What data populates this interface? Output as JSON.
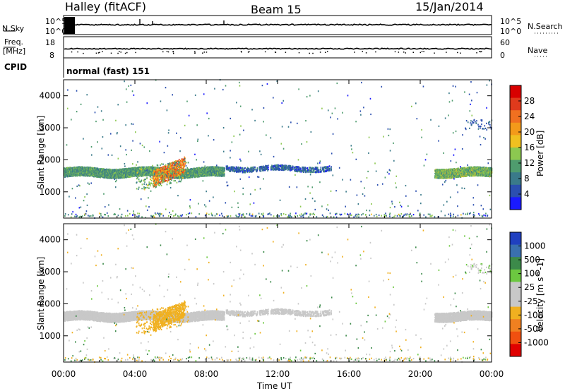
{
  "header": {
    "title": "Halley (fitACF)",
    "beam": "Beam 15",
    "date": "15/Jan/2014"
  },
  "strip_labels": {
    "nsky": "N.Sky",
    "nsky_top": "10^5",
    "nsky_bottom": "10^0",
    "nsearch": "N.Search",
    "nsearch_top": "10^5",
    "nsearch_bottom": "10^0",
    "freq": "Freq.",
    "freq_unit": "[MHz]",
    "freq_top": "18",
    "freq_bottom": "8",
    "nave": "Nave",
    "nave_top": "60",
    "nave_bottom": "0",
    "cpid": "CPID",
    "cpid_value": "normal (fast) 151"
  },
  "colors": {
    "power_scale": [
      "#1a1aff",
      "#2b4fb0",
      "#3a7a8a",
      "#4f9c6e",
      "#8cc850",
      "#f0c020",
      "#f39a1a",
      "#f07020",
      "#e03a1c",
      "#d80000"
    ],
    "velocity_scale": [
      "#2040c0",
      "#3a70b0",
      "#3c8a4a",
      "#6cc840",
      "#c8c8c8",
      "#c8c8c8",
      "#f0b020",
      "#f08020",
      "#f05010",
      "#e00000"
    ],
    "ground_scatter": "#c8c8c8"
  },
  "chart_data": [
    {
      "type": "heatmap",
      "panel": "power",
      "xlabel": "Time UT",
      "ylabel": "Slant Range [km]",
      "x_ticks": [
        "00:00",
        "04:00",
        "08:00",
        "12:00",
        "16:00",
        "20:00",
        "00:00"
      ],
      "x_range_hours": [
        0,
        24
      ],
      "y_ticks": [
        1000,
        2000,
        3000,
        4000
      ],
      "ylim": [
        180,
        4500
      ],
      "colorbar_label": "Power [dB]",
      "colorbar_ticks": [
        4,
        8,
        12,
        16,
        20,
        24,
        28
      ],
      "colorbar_range": [
        0,
        30
      ],
      "features": [
        {
          "name": "main band",
          "t_start": 0.0,
          "t_end": 9.0,
          "range_km": 1600,
          "power_db": 10
        },
        {
          "name": "main band",
          "t_start": 9.0,
          "t_end": 15.0,
          "range_km": 1720,
          "power_db": 6
        },
        {
          "name": "main band",
          "t_start": 20.8,
          "t_end": 24.0,
          "range_km": 1600,
          "power_db": 12
        },
        {
          "name": "intense patch",
          "t_start": 5.0,
          "t_end": 6.8,
          "range_km": 1400,
          "power_db": 22
        },
        {
          "name": "sporadic high range",
          "t_start": 22.5,
          "t_end": 24.0,
          "range_km": 3100,
          "power_db": 6
        }
      ]
    },
    {
      "type": "heatmap",
      "panel": "velocity",
      "xlabel": "Time UT",
      "ylabel": "Slant Range [km]",
      "x_ticks": [
        "00:00",
        "04:00",
        "08:00",
        "12:00",
        "16:00",
        "20:00",
        "00:00"
      ],
      "x_range_hours": [
        0,
        24
      ],
      "y_ticks": [
        1000,
        2000,
        3000,
        4000
      ],
      "ylim": [
        180,
        4500
      ],
      "colorbar_label": "Velocity [m s^-1]",
      "colorbar_ticks": [
        "1000",
        "500",
        "100",
        "25",
        "-25",
        "-100",
        "-500",
        "-1000"
      ],
      "features": [
        {
          "name": "ground scatter band",
          "t_start": 0.0,
          "t_end": 24.0,
          "range_km": 1650,
          "velocity": 0
        },
        {
          "name": "negative velocity patch",
          "t_start": 4.0,
          "t_end": 7.5,
          "range_km": 1250,
          "velocity": -250
        }
      ]
    }
  ]
}
